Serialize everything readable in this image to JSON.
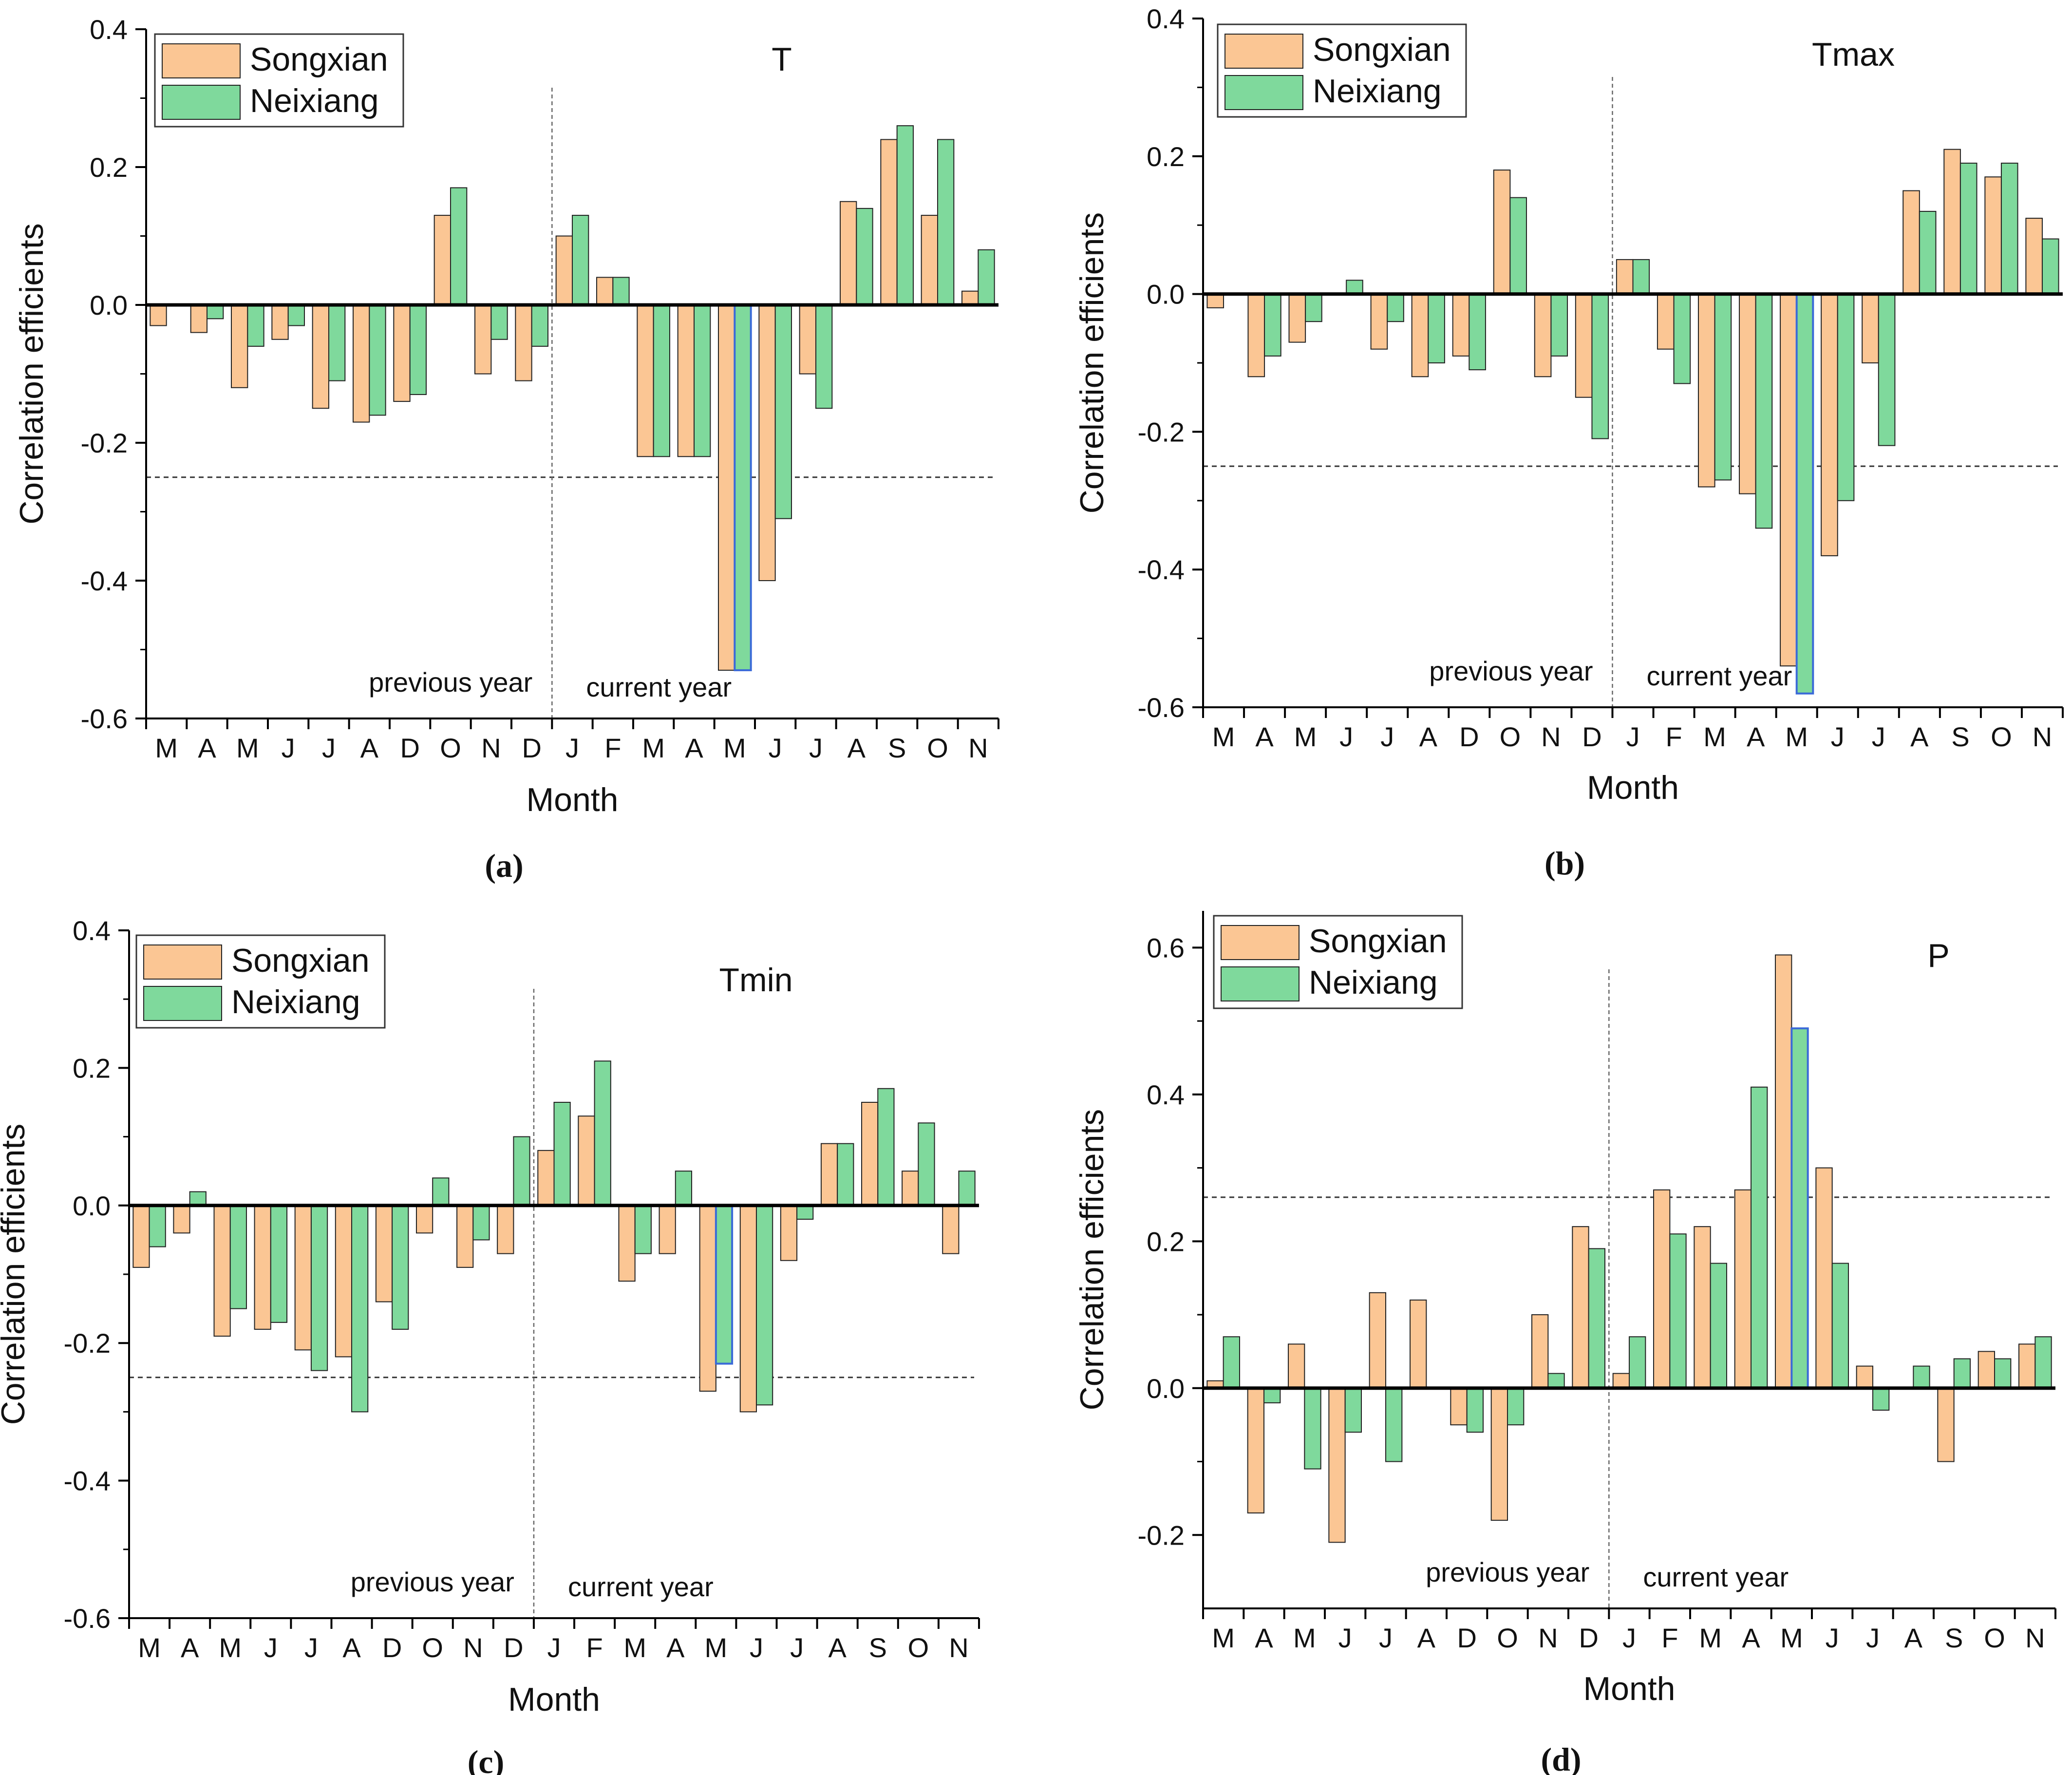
{
  "chart_data": [
    {
      "type": "bar",
      "panel_label": "(a)",
      "title": "T",
      "xlabel": "Month",
      "ylabel": "Correlation efficients",
      "ylim": [
        -0.6,
        0.4
      ],
      "yticks": [
        "0.4",
        "0.2",
        "0.0",
        "-0.2",
        "-0.4",
        "-0.6"
      ],
      "ytick_values": [
        0.4,
        0.2,
        0.0,
        -0.2,
        -0.4,
        -0.6
      ],
      "categories": [
        "M",
        "A",
        "M",
        "J",
        "J",
        "A",
        "D",
        "O",
        "N",
        "D",
        "J",
        "F",
        "M",
        "A",
        "M",
        "J",
        "J",
        "A",
        "S",
        "O",
        "N"
      ],
      "series": [
        {
          "name": "Songxian",
          "color": "#fcc594",
          "values": [
            -0.03,
            -0.04,
            -0.12,
            -0.05,
            -0.15,
            -0.17,
            -0.14,
            0.13,
            -0.1,
            -0.11,
            0.1,
            0.04,
            -0.22,
            -0.22,
            -0.53,
            -0.4,
            -0.1,
            0.15,
            0.24,
            0.13,
            0.02
          ]
        },
        {
          "name": "Neixiang",
          "color": "#7fd89c",
          "values": [
            0.0,
            -0.02,
            -0.06,
            -0.03,
            -0.11,
            -0.16,
            -0.13,
            0.17,
            -0.05,
            -0.06,
            0.13,
            0.04,
            -0.22,
            -0.22,
            -0.53,
            -0.31,
            -0.15,
            0.14,
            0.26,
            0.24,
            0.08
          ]
        }
      ],
      "highlight_bar": {
        "category_index": 14,
        "series": 1
      },
      "threshold": -0.25,
      "legend_position": "top-left",
      "annotations": {
        "previous": "previous year",
        "current": "current year"
      },
      "divider_after_category": 9
    },
    {
      "type": "bar",
      "panel_label": "(b)",
      "title": "Tmax",
      "xlabel": "Month",
      "ylabel": "Correlation efficients",
      "ylim": [
        -0.6,
        0.4
      ],
      "yticks": [
        "0.4",
        "0.2",
        "0.0",
        "-0.2",
        "-0.4",
        "-0.6"
      ],
      "ytick_values": [
        0.4,
        0.2,
        0.0,
        -0.2,
        -0.4,
        -0.6
      ],
      "categories": [
        "M",
        "A",
        "M",
        "J",
        "J",
        "A",
        "D",
        "O",
        "N",
        "D",
        "J",
        "F",
        "M",
        "A",
        "M",
        "J",
        "J",
        "A",
        "S",
        "O",
        "N"
      ],
      "series": [
        {
          "name": "Songxian",
          "color": "#fcc594",
          "values": [
            -0.02,
            -0.12,
            -0.07,
            0.0,
            -0.08,
            -0.12,
            -0.09,
            0.18,
            -0.12,
            -0.15,
            0.05,
            -0.08,
            -0.28,
            -0.29,
            -0.54,
            -0.38,
            -0.1,
            0.15,
            0.21,
            0.17,
            0.11
          ]
        },
        {
          "name": "Neixiang",
          "color": "#7fd89c",
          "values": [
            0.0,
            -0.09,
            -0.04,
            0.02,
            -0.04,
            -0.1,
            -0.11,
            0.14,
            -0.09,
            -0.21,
            0.05,
            -0.13,
            -0.27,
            -0.34,
            -0.58,
            -0.3,
            -0.22,
            0.12,
            0.19,
            0.19,
            0.08
          ]
        }
      ],
      "highlight_bar": {
        "category_index": 14,
        "series": 1
      },
      "threshold": -0.25,
      "legend_position": "top-left",
      "annotations": {
        "previous": "previous year",
        "current": "current year"
      },
      "divider_after_category": 9
    },
    {
      "type": "bar",
      "panel_label": "(c)",
      "title": "Tmin",
      "xlabel": "Month",
      "ylabel": "Correlation efficients",
      "ylim": [
        -0.6,
        0.4
      ],
      "yticks": [
        "0.4",
        "0.2",
        "0.0",
        "-0.2",
        "-0.4",
        "-0.6"
      ],
      "ytick_values": [
        0.4,
        0.2,
        0.0,
        -0.2,
        -0.4,
        -0.6
      ],
      "categories": [
        "M",
        "A",
        "M",
        "J",
        "J",
        "A",
        "D",
        "O",
        "N",
        "D",
        "J",
        "F",
        "M",
        "A",
        "M",
        "J",
        "J",
        "A",
        "S",
        "O",
        "N"
      ],
      "series": [
        {
          "name": "Songxian",
          "color": "#fcc594",
          "values": [
            -0.09,
            -0.04,
            -0.19,
            -0.18,
            -0.21,
            -0.22,
            -0.14,
            -0.04,
            -0.09,
            -0.07,
            0.08,
            0.13,
            -0.11,
            -0.07,
            -0.27,
            -0.3,
            -0.08,
            0.09,
            0.15,
            0.05,
            -0.07
          ]
        },
        {
          "name": "Neixiang",
          "color": "#7fd89c",
          "values": [
            -0.06,
            0.02,
            -0.15,
            -0.17,
            -0.24,
            -0.3,
            -0.18,
            0.04,
            -0.05,
            0.1,
            0.15,
            0.21,
            -0.07,
            0.05,
            -0.23,
            -0.29,
            -0.02,
            0.09,
            0.17,
            0.12,
            0.05
          ]
        }
      ],
      "highlight_bar": {
        "category_index": 14,
        "series": 1
      },
      "threshold": -0.25,
      "legend_position": "top-left",
      "annotations": {
        "previous": "previous year",
        "current": "current year"
      },
      "divider_after_category": 9
    },
    {
      "type": "bar",
      "panel_label": "(d)",
      "title": "P",
      "xlabel": "Month",
      "ylabel": "Correlation efficients",
      "ylim": [
        -0.3,
        0.65
      ],
      "yticks": [
        "0.6",
        "0.4",
        "0.2",
        "0.0",
        "-0.2"
      ],
      "ytick_values": [
        0.6,
        0.4,
        0.2,
        0.0,
        -0.2
      ],
      "categories": [
        "M",
        "A",
        "M",
        "J",
        "J",
        "A",
        "D",
        "O",
        "N",
        "D",
        "J",
        "F",
        "M",
        "A",
        "M",
        "J",
        "J",
        "A",
        "S",
        "O",
        "N"
      ],
      "series": [
        {
          "name": "Songxian",
          "color": "#fcc594",
          "values": [
            0.01,
            -0.17,
            0.06,
            -0.21,
            0.13,
            0.12,
            -0.05,
            -0.18,
            0.1,
            0.22,
            0.02,
            0.27,
            0.22,
            0.27,
            0.59,
            0.3,
            0.03,
            0.0,
            -0.1,
            0.05,
            0.06
          ]
        },
        {
          "name": "Neixiang",
          "color": "#7fd89c",
          "values": [
            0.07,
            -0.02,
            -0.11,
            -0.06,
            -0.1,
            0.0,
            -0.06,
            -0.05,
            0.02,
            0.19,
            0.07,
            0.21,
            0.17,
            0.41,
            0.49,
            0.17,
            -0.03,
            0.03,
            0.04,
            0.04,
            0.07
          ]
        }
      ],
      "highlight_bar": {
        "category_index": 14,
        "series": 1
      },
      "threshold": 0.26,
      "legend_position": "top-left",
      "annotations": {
        "previous": "previous year",
        "current": "current year"
      },
      "divider_after_category": 9
    }
  ],
  "colors": {
    "songxian": "#fcc594",
    "neixiang": "#7fd89c",
    "highlight_edge": "#3a6ad8",
    "axis": "#000000",
    "threshold": "#333333"
  }
}
